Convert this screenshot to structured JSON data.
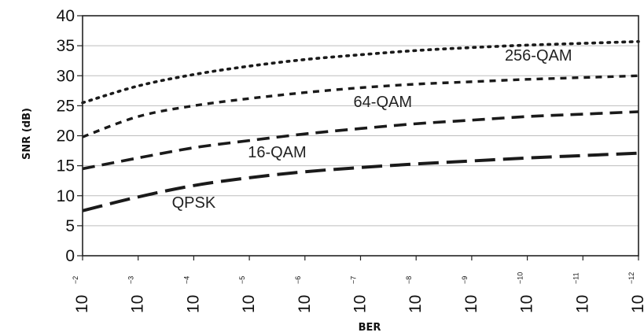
{
  "chart_data": {
    "type": "line",
    "xlabel": "BER",
    "ylabel": "SNR (dB)",
    "ylim": [
      0,
      40
    ],
    "yticks": [
      "0",
      "5",
      "10",
      "15",
      "20",
      "25",
      "30",
      "35",
      "40"
    ],
    "x": [
      2,
      3,
      4,
      5,
      6,
      7,
      8,
      9,
      10,
      11,
      12
    ],
    "xticks": [
      {
        "base": "10",
        "exp": "−2"
      },
      {
        "base": "10",
        "exp": "−3"
      },
      {
        "base": "10",
        "exp": "−4"
      },
      {
        "base": "10",
        "exp": "−5"
      },
      {
        "base": "10",
        "exp": "−6"
      },
      {
        "base": "10",
        "exp": "−7"
      },
      {
        "base": "10",
        "exp": "−8"
      },
      {
        "base": "10",
        "exp": "−9"
      },
      {
        "base": "10",
        "exp": "−10"
      },
      {
        "base": "10",
        "exp": "−11"
      },
      {
        "base": "10",
        "exp": "−12"
      }
    ],
    "grid": "horizontal",
    "series": [
      {
        "name": "QPSK",
        "dash": "long-dash",
        "values": [
          7.5,
          9.8,
          11.7,
          13.0,
          14.0,
          14.7,
          15.3,
          15.8,
          16.3,
          16.7,
          17.1
        ]
      },
      {
        "name": "16-QAM",
        "dash": "dash",
        "values": [
          14.5,
          16.3,
          18.0,
          19.2,
          20.3,
          21.2,
          22.0,
          22.6,
          23.2,
          23.6,
          24.0
        ]
      },
      {
        "name": "64-QAM",
        "dash": "short-dash",
        "values": [
          19.8,
          23.2,
          25.0,
          26.2,
          27.2,
          28.0,
          28.6,
          29.0,
          29.4,
          29.7,
          30.0
        ]
      },
      {
        "name": "256-QAM",
        "dash": "dotted",
        "values": [
          25.5,
          28.3,
          30.2,
          31.6,
          32.7,
          33.5,
          34.2,
          34.7,
          35.1,
          35.4,
          35.7
        ]
      }
    ]
  }
}
